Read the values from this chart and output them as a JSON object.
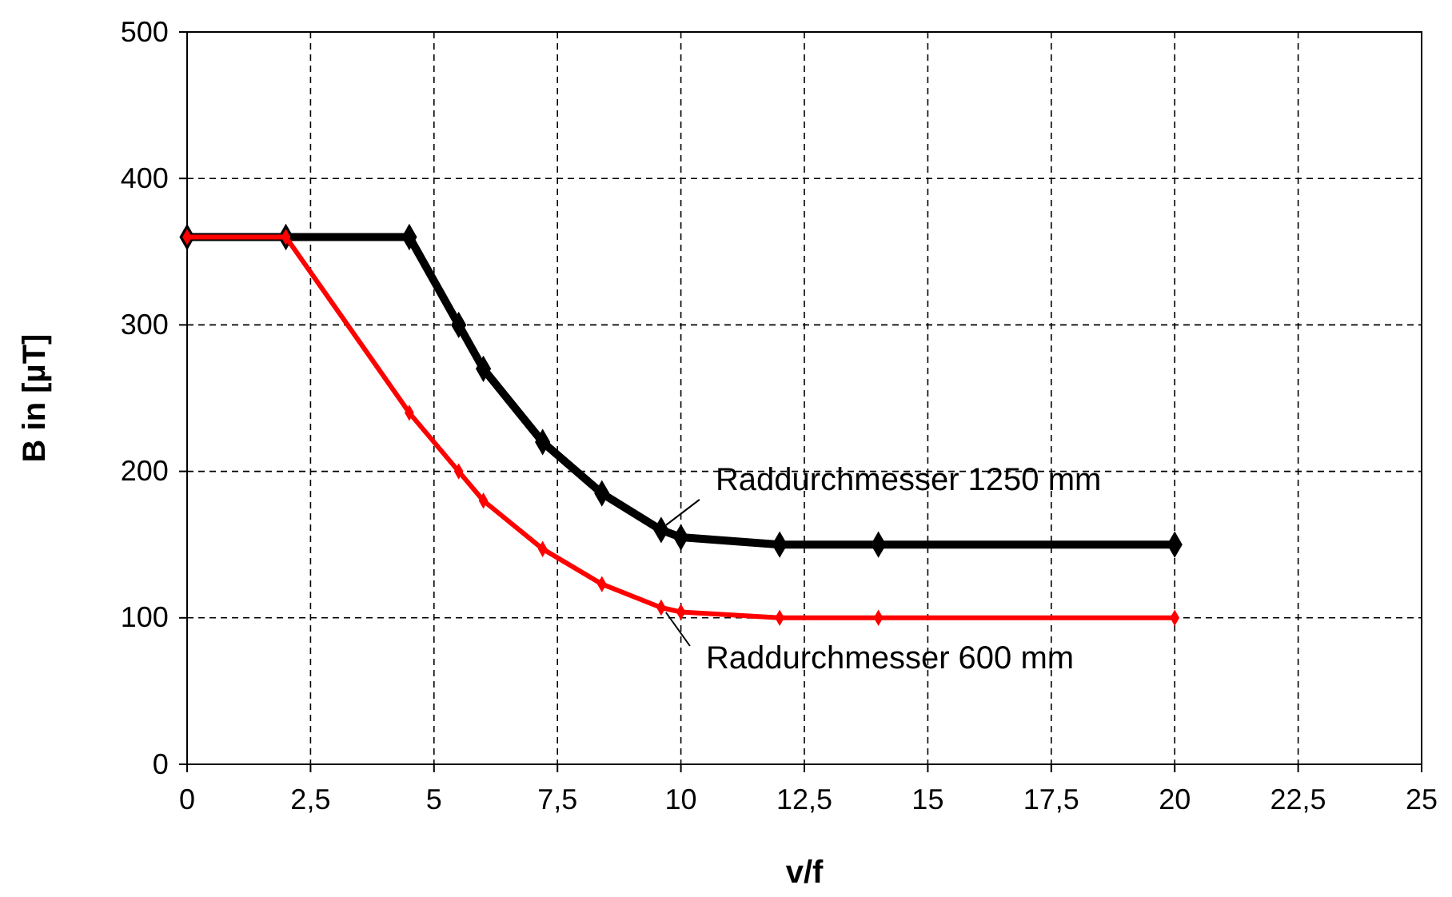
{
  "chart_data": {
    "type": "line",
    "xlabel": "v/f",
    "ylabel": "B in [µT]",
    "xlim": [
      0,
      25
    ],
    "xticks": [
      0,
      {
        "value": 2.5,
        "label": "2,5"
      },
      5,
      {
        "value": 7.5,
        "label": "7,5"
      },
      10,
      {
        "value": 12.5,
        "label": "12,5"
      },
      15,
      {
        "value": 17.5,
        "label": "17,5"
      },
      20,
      {
        "value": 22.5,
        "label": "22,5"
      },
      25
    ],
    "ylim": [
      0,
      500
    ],
    "yticks": [
      0,
      100,
      200,
      300,
      400,
      500
    ],
    "grid": true,
    "marker": "diamond",
    "line_style": "solid",
    "series": [
      {
        "color": "#000000",
        "x": [
          0,
          2,
          4.5,
          5.5,
          6,
          7.2,
          8.4,
          9.6,
          10,
          12,
          14,
          20
        ],
        "values": [
          360,
          360,
          360,
          300,
          270,
          220,
          185,
          160,
          155,
          150,
          150,
          150
        ]
      },
      {
        "color": "#ff0000",
        "x": [
          0,
          2,
          4.5,
          5.5,
          6,
          7.2,
          8.4,
          9.6,
          10,
          12,
          14,
          20
        ],
        "values": [
          360,
          360,
          240,
          200,
          180,
          147,
          123,
          107,
          104,
          100,
          100,
          100
        ]
      }
    ],
    "annotations": [
      {
        "text": "Raddurchmesser 1250 mm",
        "x": 9.6,
        "y": 160
      },
      {
        "text": "Raddurchmesser 600 mm",
        "x": 9.6,
        "y": 107
      }
    ]
  }
}
